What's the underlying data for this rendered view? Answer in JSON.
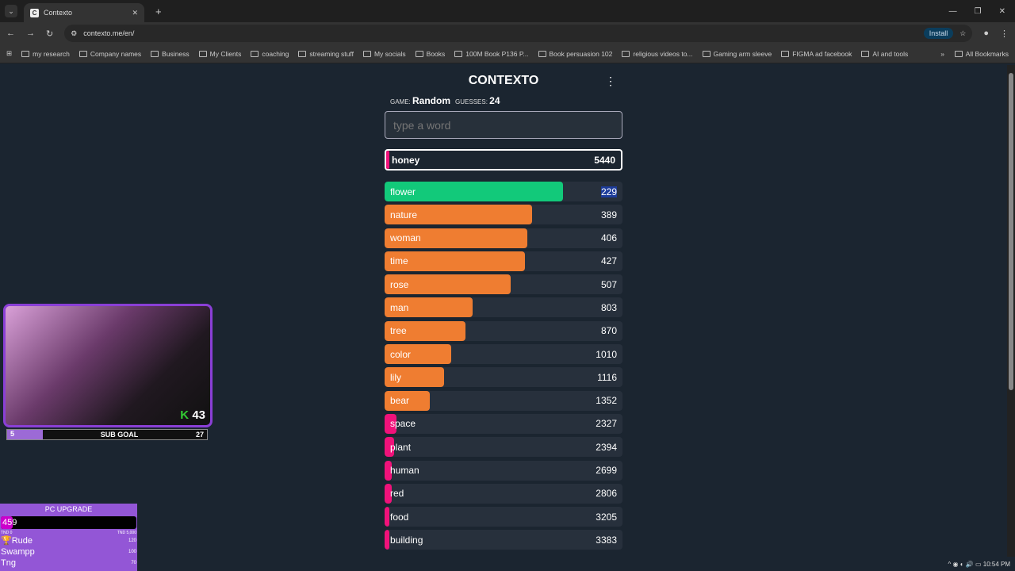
{
  "browser": {
    "tab_title": "Contexto",
    "url": "contexto.me/en/",
    "install_label": "Install",
    "bookmarks": [
      "my research",
      "Company names",
      "Business",
      "My Clients",
      "coaching",
      "streaming stuff",
      "My socials",
      "Books",
      "100M Book P136 P...",
      "Book persuasion 102",
      "religious videos to...",
      "Gaming arm sleeve",
      "FIGMA ad facebook",
      "AI and tools"
    ],
    "all_bookmarks": "All Bookmarks",
    "time": "10:54 PM"
  },
  "game": {
    "title": "CONTEXTO",
    "game_label": "GAME:",
    "game_value": "Random",
    "guesses_label": "GUESSES:",
    "guesses_value": "24",
    "placeholder": "type a word",
    "current": {
      "word": "honey",
      "rank": "5440"
    },
    "guesses": [
      {
        "word": "flower",
        "rank": "229",
        "fill": 0.75,
        "color": "#12c97a"
      },
      {
        "word": "nature",
        "rank": "389",
        "fill": 0.62,
        "color": "#ef7d31"
      },
      {
        "word": "woman",
        "rank": "406",
        "fill": 0.6,
        "color": "#ef7d31"
      },
      {
        "word": "time",
        "rank": "427",
        "fill": 0.59,
        "color": "#ef7d31"
      },
      {
        "word": "rose",
        "rank": "507",
        "fill": 0.53,
        "color": "#ef7d31"
      },
      {
        "word": "man",
        "rank": "803",
        "fill": 0.37,
        "color": "#ef7d31"
      },
      {
        "word": "tree",
        "rank": "870",
        "fill": 0.34,
        "color": "#ef7d31"
      },
      {
        "word": "color",
        "rank": "1010",
        "fill": 0.28,
        "color": "#ef7d31"
      },
      {
        "word": "lily",
        "rank": "1116",
        "fill": 0.25,
        "color": "#ef7d31"
      },
      {
        "word": "bear",
        "rank": "1352",
        "fill": 0.19,
        "color": "#ef7d31"
      },
      {
        "word": "space",
        "rank": "2327",
        "fill": 0.05,
        "color": "#f0127a"
      },
      {
        "word": "plant",
        "rank": "2394",
        "fill": 0.04,
        "color": "#f0127a"
      },
      {
        "word": "human",
        "rank": "2699",
        "fill": 0.03,
        "color": "#f0127a"
      },
      {
        "word": "red",
        "rank": "2806",
        "fill": 0.03,
        "color": "#f0127a"
      },
      {
        "word": "food",
        "rank": "3205",
        "fill": 0.02,
        "color": "#f0127a"
      },
      {
        "word": "building",
        "rank": "3383",
        "fill": 0.02,
        "color": "#f0127a"
      }
    ]
  },
  "overlay": {
    "kills": "43",
    "sub_goal": "SUB GOAL",
    "sub_current": "5",
    "sub_target": "27",
    "pc_title": "PC UPGRADE",
    "pc_value": "459",
    "pc_progress": 0.09,
    "pc_min": "TND 0",
    "pc_max": "TND 5,000",
    "leaders": [
      {
        "name": "Rude",
        "amount": "120"
      },
      {
        "name": "Swampp",
        "amount": "100"
      },
      {
        "name": "Tng",
        "amount": "70"
      }
    ]
  }
}
